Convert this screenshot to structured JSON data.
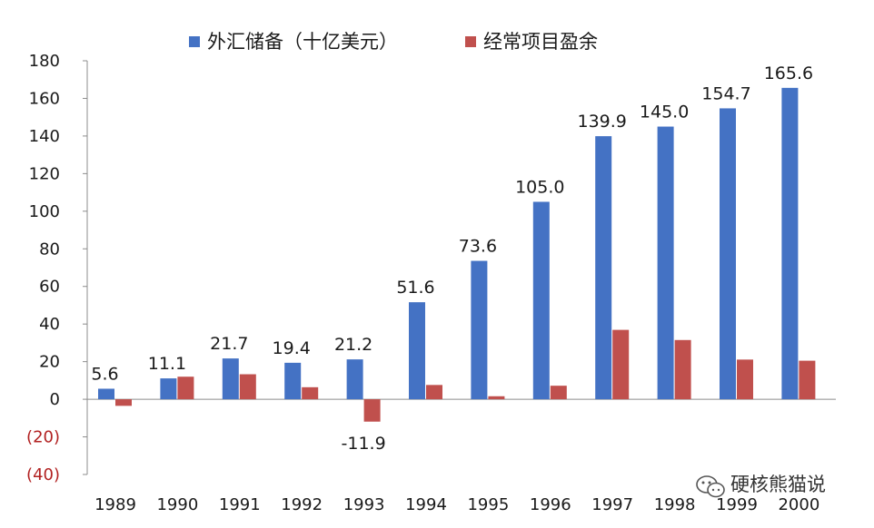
{
  "chart_data": {
    "type": "bar",
    "title": "",
    "xlabel": "",
    "ylabel": "",
    "categories": [
      "1989",
      "1990",
      "1991",
      "1992",
      "1993",
      "1994",
      "1995",
      "1996",
      "1997",
      "1998",
      "1999",
      "2000"
    ],
    "series": [
      {
        "name": "外汇储备（十亿美元）",
        "color": "#4472c4",
        "values": [
          5.6,
          11.1,
          21.7,
          19.4,
          21.2,
          51.6,
          73.6,
          105.0,
          139.9,
          145.0,
          154.7,
          165.6
        ],
        "labels": [
          "5.6",
          "11.1",
          "21.7",
          "19.4",
          "21.2",
          "51.6",
          "73.6",
          "105.0",
          "139.9",
          "145.0",
          "154.7",
          "165.6"
        ]
      },
      {
        "name": "经常项目盈余",
        "color": "#c0504d",
        "values": [
          -3.5,
          12.0,
          13.3,
          6.4,
          -11.9,
          7.6,
          1.6,
          7.2,
          36.9,
          31.5,
          21.1,
          20.5
        ],
        "labels": [
          "",
          "",
          "",
          "",
          "-11.9",
          "",
          "",
          "",
          "",
          "",
          "",
          ""
        ]
      }
    ],
    "ylim": [
      -40,
      180
    ],
    "yticks": [
      -40,
      -20,
      0,
      20,
      40,
      60,
      80,
      100,
      120,
      140,
      160,
      180
    ],
    "ytick_labels": [
      "(40)",
      "(20)",
      "0",
      "20",
      "40",
      "60",
      "80",
      "100",
      "120",
      "140",
      "160",
      "180"
    ],
    "negative_tick_color": "#b22222",
    "grid": false,
    "legend_position": "top-center"
  },
  "watermark": {
    "text": "硬核熊猫说",
    "icon": "wechat-icon"
  }
}
